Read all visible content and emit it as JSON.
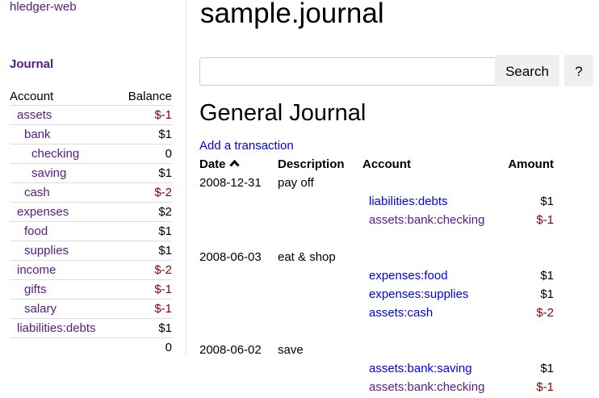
{
  "sidebar": {
    "brand": "hledger-web",
    "journal_link": "Journal",
    "headers": {
      "account": "Account",
      "balance": "Balance"
    },
    "accounts": [
      {
        "name": "assets",
        "balance": "$-1",
        "depth": 0,
        "negative": true
      },
      {
        "name": "bank",
        "balance": "$1",
        "depth": 1,
        "negative": false
      },
      {
        "name": "checking",
        "balance": "0",
        "depth": 2,
        "negative": false
      },
      {
        "name": "saving",
        "balance": "$1",
        "depth": 2,
        "negative": false
      },
      {
        "name": "cash",
        "balance": "$-2",
        "depth": 1,
        "negative": true
      },
      {
        "name": "expenses",
        "balance": "$2",
        "depth": 0,
        "negative": false
      },
      {
        "name": "food",
        "balance": "$1",
        "depth": 1,
        "negative": false
      },
      {
        "name": "supplies",
        "balance": "$1",
        "depth": 1,
        "negative": false
      },
      {
        "name": "income",
        "balance": "$-2",
        "depth": 0,
        "negative": true
      },
      {
        "name": "gifts",
        "balance": "$-1",
        "depth": 1,
        "negative": true
      },
      {
        "name": "salary",
        "balance": "$-1",
        "depth": 1,
        "negative": true
      },
      {
        "name": "liabilities:debts",
        "balance": "$1",
        "depth": 0,
        "negative": false
      }
    ],
    "total": "0"
  },
  "main": {
    "title": "sample.journal",
    "search": {
      "value": "",
      "placeholder": "",
      "button": "Search",
      "help": "?"
    },
    "heading": "General Journal",
    "add_link": "Add a transaction",
    "columns": {
      "date": "Date",
      "sort_icon": "chevron-up-icon",
      "description": "Description",
      "account": "Account",
      "amount": "Amount"
    },
    "transactions": [
      {
        "date": "2008-12-31",
        "description": "pay off",
        "postings": [
          {
            "account": "liabilities:debts",
            "amount": "$1",
            "negative": false,
            "visited": false
          },
          {
            "account": "assets:bank:checking",
            "amount": "$-1",
            "negative": true,
            "visited": true
          }
        ]
      },
      {
        "date": "2008-06-03",
        "description": "eat & shop",
        "postings": [
          {
            "account": "expenses:food",
            "amount": "$1",
            "negative": false,
            "visited": false
          },
          {
            "account": "expenses:supplies",
            "amount": "$1",
            "negative": false,
            "visited": false
          },
          {
            "account": "assets:cash",
            "amount": "$-2",
            "negative": true,
            "visited": false
          }
        ]
      },
      {
        "date": "2008-06-02",
        "description": "save",
        "postings": [
          {
            "account": "assets:bank:saving",
            "amount": "$1",
            "negative": false,
            "visited": false
          },
          {
            "account": "assets:bank:checking",
            "amount": "$-1",
            "negative": true,
            "visited": true
          }
        ]
      }
    ]
  },
  "colors": {
    "link": "#0000ee",
    "visited": "#551a8b",
    "negative": "#8b0000"
  }
}
